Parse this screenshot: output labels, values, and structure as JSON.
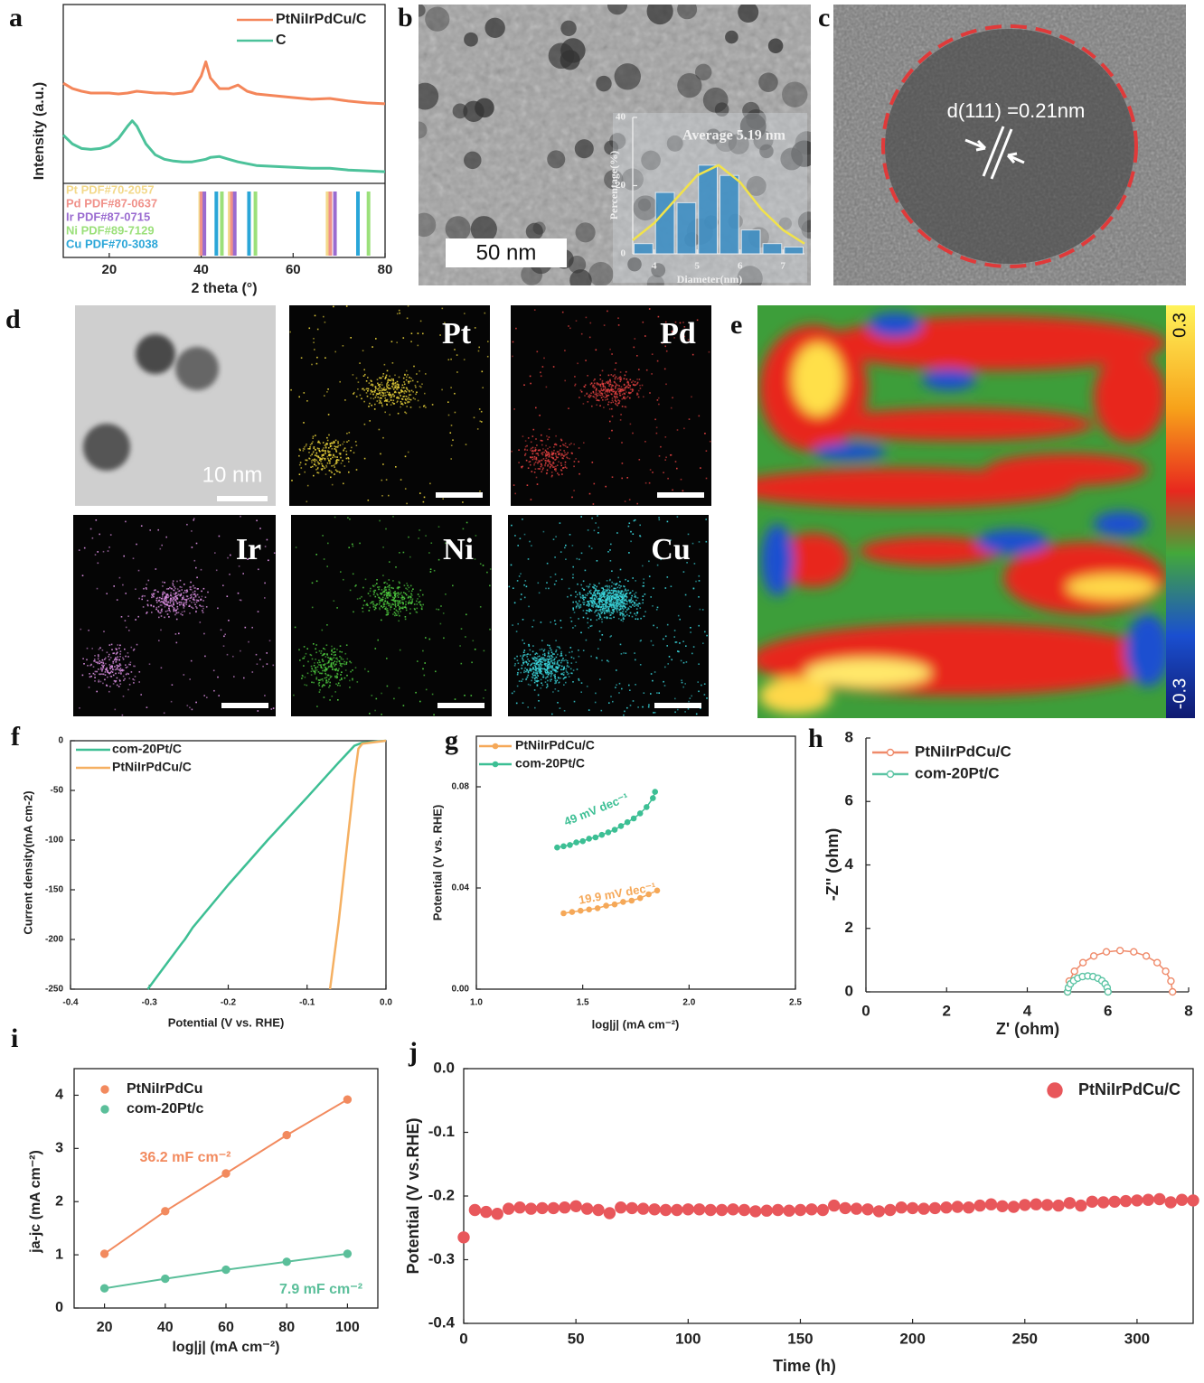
{
  "panel_labels": [
    "a",
    "b",
    "c",
    "d",
    "e",
    "f",
    "g",
    "h",
    "i",
    "j"
  ],
  "micrographs": {
    "b_scale_bar": "50 nm",
    "c_annotation": "d(111) =0.21nm",
    "d_scale_bar": "10 nm",
    "d_maps": [
      "Pt",
      "Pd",
      "Ir",
      "Ni",
      "Cu"
    ],
    "e_colorbar": [
      "0.3",
      "-0.3"
    ]
  },
  "chart_data": [
    {
      "type": "line",
      "xlabel": "2 theta (°)",
      "ylabel": "Intensity (a.u.)",
      "x": [
        10,
        12,
        14,
        16,
        18,
        20,
        22,
        24,
        25,
        26,
        28,
        30,
        32,
        34,
        36,
        38,
        40,
        41,
        42,
        44,
        46,
        48,
        50,
        52,
        56,
        60,
        64,
        68,
        72,
        76,
        80
      ],
      "series": [
        {
          "name": "PtNiIrPdCu/C",
          "color": "#f4865a",
          "values": [
            5.6,
            5.3,
            5.15,
            5.05,
            5.05,
            5.05,
            5.0,
            5.05,
            5.1,
            5.15,
            5.1,
            5.05,
            5.05,
            5.0,
            5.05,
            5.15,
            6.0,
            6.8,
            5.9,
            5.3,
            5.3,
            5.5,
            5.15,
            5.0,
            4.9,
            4.8,
            4.7,
            4.75,
            4.6,
            4.5,
            4.45
          ]
        },
        {
          "name": "C",
          "color": "#4cc29a",
          "values": [
            2.7,
            2.2,
            1.95,
            1.9,
            1.95,
            2.1,
            2.5,
            3.2,
            3.5,
            3.2,
            2.2,
            1.6,
            1.35,
            1.25,
            1.2,
            1.2,
            1.3,
            1.35,
            1.45,
            1.5,
            1.35,
            1.2,
            1.1,
            1.0,
            0.95,
            0.9,
            0.85,
            0.85,
            0.75,
            0.7,
            0.65
          ]
        }
      ],
      "references": [
        {
          "name": "Pt PDF#70-2057",
          "color": "#f3d98a",
          "positions": [
            39.8,
            46.2,
            67.5
          ]
        },
        {
          "name": "Pd PDF#87-0637",
          "color": "#f0918a",
          "positions": [
            40.1,
            46.7,
            68.1
          ]
        },
        {
          "name": "Ir PDF#87-0715",
          "color": "#9a6bd0",
          "positions": [
            40.7,
            47.3,
            69.1
          ]
        },
        {
          "name": "Ni PDF#89-7129",
          "color": "#9be07a",
          "positions": [
            44.5,
            51.8,
            76.4
          ]
        },
        {
          "name": "Cu PDF#70-3038",
          "color": "#2aa6d8",
          "positions": [
            43.3,
            50.4,
            74.1
          ]
        }
      ],
      "xlim": [
        10,
        80
      ],
      "xticks": [
        20,
        40,
        60,
        80
      ],
      "ylim": [
        0,
        10
      ]
    },
    {
      "type": "histogram",
      "xlabel": "Diameter(nm)",
      "ylabel": "Percentage(%)",
      "color": "#3f8fc4",
      "bins": [
        3.5,
        4,
        4.5,
        5,
        5.5,
        6,
        6.5,
        7,
        7.5
      ],
      "values": [
        3,
        18,
        15,
        26,
        23,
        7,
        3,
        2
      ],
      "curve": {
        "color": "#f2e34a",
        "x": [
          3.5,
          4,
          4.5,
          5,
          5.5,
          6,
          6.5,
          7,
          7.5
        ],
        "values": [
          4,
          9,
          16,
          23,
          26,
          21,
          13,
          7,
          3
        ]
      },
      "annotations": [
        {
          "text": "Average 5.19 nm",
          "color": "#f0f0f0"
        }
      ],
      "xlim": [
        3.5,
        7.5
      ],
      "xticks": [
        4,
        5,
        6,
        7
      ],
      "ylim": [
        0,
        40
      ],
      "yticks": [
        0,
        20,
        40
      ]
    },
    {
      "type": "line",
      "xlabel": "Potential (V vs. RHE)",
      "ylabel": "Current density(mA cm-2)",
      "series": [
        {
          "name": "com-20Pt/C",
          "color": "#3dbf94",
          "x": [
            -0.302,
            -0.29,
            -0.26,
            -0.255,
            -0.245,
            -0.2,
            -0.15,
            -0.1,
            -0.06,
            -0.04,
            -0.03,
            0.0
          ],
          "values": [
            -250,
            -237,
            -205,
            -200,
            -188,
            -145,
            -100,
            -57,
            -22,
            -5,
            -2,
            0
          ]
        },
        {
          "name": "PtNiIrPdCu/C",
          "color": "#f5b062",
          "x": [
            -0.071,
            -0.06,
            -0.05,
            -0.04,
            -0.035,
            -0.03,
            0.0
          ],
          "values": [
            -250,
            -183,
            -110,
            -38,
            -8,
            -3,
            0
          ]
        }
      ],
      "xlim": [
        -0.4,
        0
      ],
      "xticks": [
        -0.4,
        -0.3,
        -0.2,
        -0.1,
        {
          "value": 0,
          "label": "0.0"
        }
      ],
      "ylim": [
        -250,
        0
      ],
      "yticks": [
        0,
        -50,
        -100,
        -150,
        -200,
        -250
      ]
    },
    {
      "type": "line",
      "xlabel": "log|j| (mA cm⁻²)",
      "ylabel": "Potential (V vs. RHE)",
      "series": [
        {
          "name": "PtNiIrPdCu/C",
          "color": "#f5a858",
          "marker": "filled",
          "x": [
            1.41,
            1.45,
            1.49,
            1.53,
            1.57,
            1.61,
            1.65,
            1.69,
            1.73,
            1.77,
            1.81,
            1.85
          ],
          "values": [
            0.03,
            0.0305,
            0.031,
            0.0315,
            0.032,
            0.033,
            0.0335,
            0.0345,
            0.035,
            0.036,
            0.0375,
            0.039
          ]
        },
        {
          "name": "com-20Pt/C",
          "color": "#3cbf94",
          "marker": "filled",
          "x": [
            1.38,
            1.41,
            1.44,
            1.47,
            1.5,
            1.53,
            1.56,
            1.59,
            1.62,
            1.65,
            1.68,
            1.71,
            1.74,
            1.77,
            1.8,
            1.83,
            1.84
          ],
          "values": [
            0.056,
            0.0565,
            0.057,
            0.058,
            0.0585,
            0.0595,
            0.06,
            0.061,
            0.062,
            0.063,
            0.0645,
            0.066,
            0.0675,
            0.0695,
            0.072,
            0.0755,
            0.078
          ]
        }
      ],
      "annotations": [
        {
          "text": "49 mV dec⁻¹",
          "color": "#3cbf94"
        },
        {
          "text": "19.9 mV dec⁻¹",
          "color": "#f5a858"
        }
      ],
      "xlim": [
        1.0,
        2.5
      ],
      "xticks": [
        {
          "value": 1,
          "label": "1.0"
        },
        1.5,
        {
          "value": 2,
          "label": "2.0"
        },
        2.5
      ],
      "ylim": [
        0,
        0.1
      ],
      "yticks": [
        {
          "value": 0,
          "label": "0.00"
        },
        0.04,
        0.08
      ]
    },
    {
      "type": "line",
      "xlabel": "Z' (ohm)",
      "ylabel": "-Z'' (ohm)",
      "series": [
        {
          "name": "PtNiIrPdCu/C",
          "color": "#ef8a6a",
          "marker": "open",
          "x": [
            5.0,
            5.04,
            5.17,
            5.38,
            5.65,
            5.96,
            6.3,
            6.64,
            6.95,
            7.22,
            7.43,
            7.56,
            7.6
          ],
          "values": [
            0,
            0.34,
            0.65,
            0.92,
            1.13,
            1.26,
            1.3,
            1.26,
            1.13,
            0.92,
            0.65,
            0.34,
            0
          ]
        },
        {
          "name": "com-20Pt/C",
          "color": "#5cc4a4",
          "marker": "open",
          "x": [
            5.0,
            5.02,
            5.07,
            5.15,
            5.25,
            5.37,
            5.5,
            5.63,
            5.75,
            5.85,
            5.93,
            5.98,
            6.0
          ],
          "values": [
            0,
            0.13,
            0.25,
            0.35,
            0.43,
            0.48,
            0.5,
            0.48,
            0.43,
            0.35,
            0.25,
            0.13,
            0
          ]
        }
      ],
      "xlim": [
        0,
        8
      ],
      "xticks": [
        0,
        2,
        4,
        6,
        8
      ],
      "ylim": [
        0,
        8
      ],
      "yticks": [
        0,
        2,
        4,
        6,
        8
      ]
    },
    {
      "type": "line",
      "xlabel": "log|j| (mA cm⁻²)",
      "ylabel": "ja-jc (mA cm⁻²)",
      "x": [
        20,
        40,
        60,
        80,
        100
      ],
      "series": [
        {
          "name": "PtNiIrPdCu",
          "color": "#f28a5e",
          "marker": "filled",
          "values": [
            1.02,
            1.82,
            2.53,
            3.25,
            3.92
          ]
        },
        {
          "name": "com-20Pt/c",
          "color": "#5bbf9a",
          "marker": "filled",
          "values": [
            0.37,
            0.55,
            0.72,
            0.87,
            1.02
          ]
        }
      ],
      "annotations": [
        {
          "text": "36.2 mF cm⁻²",
          "color": "#f28a5e"
        },
        {
          "text": "7.9 mF cm⁻²",
          "color": "#5bbf9a"
        }
      ],
      "xlim": [
        10,
        110
      ],
      "xticks": [
        20,
        40,
        60,
        80,
        100
      ],
      "ylim": [
        0,
        4.5
      ],
      "yticks": [
        0,
        1,
        2,
        3,
        4
      ]
    },
    {
      "type": "scatter",
      "xlabel": "Time (h)",
      "ylabel": "Potential (V vs.RHE)",
      "x": [
        0,
        5,
        10,
        15,
        20,
        25,
        30,
        35,
        40,
        45,
        50,
        55,
        60,
        65,
        70,
        75,
        80,
        85,
        90,
        95,
        100,
        105,
        110,
        115,
        120,
        125,
        130,
        135,
        140,
        145,
        150,
        155,
        160,
        165,
        170,
        175,
        180,
        185,
        190,
        195,
        200,
        205,
        210,
        215,
        220,
        225,
        230,
        235,
        240,
        245,
        250,
        255,
        260,
        265,
        270,
        275,
        280,
        285,
        290,
        295,
        300,
        305,
        310,
        315,
        320,
        325
      ],
      "series": [
        {
          "name": "PtNiIrPdCu/C",
          "color": "#e8575b",
          "marker": "filled",
          "values": [
            -0.265,
            -0.222,
            -0.225,
            -0.228,
            -0.22,
            -0.218,
            -0.22,
            -0.219,
            -0.219,
            -0.218,
            -0.216,
            -0.22,
            -0.222,
            -0.227,
            -0.218,
            -0.219,
            -0.22,
            -0.221,
            -0.222,
            -0.222,
            -0.221,
            -0.221,
            -0.222,
            -0.222,
            -0.221,
            -0.222,
            -0.224,
            -0.223,
            -0.222,
            -0.223,
            -0.222,
            -0.221,
            -0.222,
            -0.215,
            -0.219,
            -0.22,
            -0.221,
            -0.224,
            -0.222,
            -0.218,
            -0.219,
            -0.22,
            -0.219,
            -0.218,
            -0.217,
            -0.218,
            -0.215,
            -0.213,
            -0.216,
            -0.217,
            -0.214,
            -0.213,
            -0.214,
            -0.215,
            -0.211,
            -0.215,
            -0.209,
            -0.21,
            -0.209,
            -0.208,
            -0.207,
            -0.206,
            -0.205,
            -0.21,
            -0.206,
            -0.207
          ]
        }
      ],
      "xlim": [
        0,
        325
      ],
      "xticks": [
        0,
        50,
        100,
        150,
        200,
        250,
        300
      ],
      "ylim": [
        -0.4,
        0
      ],
      "yticks": [
        {
          "value": 0,
          "label": "0.0"
        },
        -0.1,
        -0.2,
        -0.3,
        -0.4
      ]
    }
  ]
}
